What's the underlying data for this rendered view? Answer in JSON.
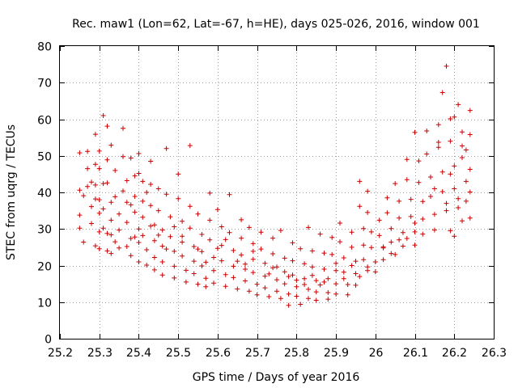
{
  "chart_data": {
    "type": "scatter",
    "title": "Rec. maw1 (Lon=62, Lat=-67, h=HE), days 025-026, 2016, window 001",
    "xlabel": "GPS time / Days of year 2016",
    "ylabel": "STEC from uqrg / TECUs",
    "xlim": [
      25.2,
      26.3
    ],
    "ylim": [
      0,
      80
    ],
    "xticks": [
      "25.2",
      "25.3",
      "25.4",
      "25.5",
      "25.6",
      "25.7",
      "25.8",
      "25.9",
      "26",
      "26.1",
      "26.2",
      "26.3"
    ],
    "yticks": [
      "0",
      "10",
      "20",
      "30",
      "40",
      "50",
      "60",
      "70",
      "80"
    ],
    "grid": true,
    "marker": "+",
    "color": "#cc0000",
    "series": [
      {
        "name": "STEC",
        "points": [
          [
            25.25,
            50.8
          ],
          [
            25.25,
            40.6
          ],
          [
            25.26,
            39.1
          ],
          [
            25.25,
            33.8
          ],
          [
            25.25,
            30.2
          ],
          [
            25.26,
            26.4
          ],
          [
            25.27,
            51.2
          ],
          [
            25.27,
            46.5
          ],
          [
            25.27,
            41.6
          ],
          [
            25.28,
            36.1
          ],
          [
            25.28,
            31.5
          ],
          [
            25.29,
            25.4
          ],
          [
            25.29,
            55.9
          ],
          [
            25.29,
            47.7
          ],
          [
            25.29,
            42.0
          ],
          [
            25.29,
            38.2
          ],
          [
            25.3,
            34.3
          ],
          [
            25.3,
            29.2
          ],
          [
            25.3,
            24.6
          ],
          [
            25.3,
            51.3
          ],
          [
            25.3,
            46.5
          ],
          [
            25.31,
            42.4
          ],
          [
            25.31,
            35.5
          ],
          [
            25.31,
            30.2
          ],
          [
            25.32,
            24.0
          ],
          [
            25.31,
            61.0
          ],
          [
            25.32,
            58.1
          ],
          [
            25.32,
            48.9
          ],
          [
            25.32,
            42.6
          ],
          [
            25.33,
            37.3
          ],
          [
            25.33,
            32.4
          ],
          [
            25.33,
            28.4
          ],
          [
            25.33,
            23.3
          ],
          [
            25.33,
            52.9
          ],
          [
            25.34,
            46.0
          ],
          [
            25.34,
            38.8
          ],
          [
            25.35,
            34.1
          ],
          [
            25.35,
            29.7
          ],
          [
            25.35,
            24.8
          ],
          [
            25.36,
            57.5
          ],
          [
            25.36,
            49.8
          ],
          [
            25.37,
            43.2
          ],
          [
            25.37,
            37.3
          ],
          [
            25.37,
            31.8
          ],
          [
            25.38,
            27.4
          ],
          [
            25.38,
            22.7
          ],
          [
            25.38,
            49.4
          ],
          [
            25.39,
            44.5
          ],
          [
            25.39,
            38.9
          ],
          [
            25.39,
            34.6
          ],
          [
            25.4,
            30.0
          ],
          [
            25.4,
            26.3
          ],
          [
            25.4,
            21.0
          ],
          [
            25.4,
            50.6
          ],
          [
            25.41,
            43.0
          ],
          [
            25.41,
            37.6
          ],
          [
            25.41,
            33.2
          ],
          [
            25.41,
            28.2
          ],
          [
            25.42,
            24.3
          ],
          [
            25.42,
            20.1
          ],
          [
            25.43,
            48.5
          ],
          [
            25.43,
            42.2
          ],
          [
            25.43,
            36.4
          ],
          [
            25.44,
            31.1
          ],
          [
            25.44,
            26.8
          ],
          [
            25.44,
            22.2
          ],
          [
            25.44,
            18.8
          ],
          [
            25.45,
            41.0
          ],
          [
            25.45,
            35.0
          ],
          [
            25.46,
            29.7
          ],
          [
            25.46,
            25.3
          ],
          [
            25.46,
            21.0
          ],
          [
            25.46,
            17.4
          ],
          [
            25.47,
            52.0
          ],
          [
            25.47,
            39.5
          ],
          [
            25.48,
            33.3
          ],
          [
            25.48,
            27.9
          ],
          [
            25.49,
            23.9
          ],
          [
            25.49,
            19.8
          ],
          [
            25.49,
            16.6
          ],
          [
            25.5,
            45.0
          ],
          [
            25.5,
            38.3
          ],
          [
            25.51,
            32.1
          ],
          [
            25.51,
            26.4
          ],
          [
            25.51,
            22.6
          ],
          [
            25.52,
            18.7
          ],
          [
            25.52,
            15.5
          ],
          [
            25.53,
            52.8
          ],
          [
            25.53,
            36.2
          ],
          [
            25.53,
            30.2
          ],
          [
            25.54,
            25.2
          ],
          [
            25.54,
            21.2
          ],
          [
            25.54,
            17.8
          ],
          [
            25.55,
            14.9
          ],
          [
            25.55,
            34.1
          ],
          [
            25.56,
            28.5
          ],
          [
            25.56,
            23.8
          ],
          [
            25.56,
            19.9
          ],
          [
            25.57,
            16.5
          ],
          [
            25.57,
            14.2
          ],
          [
            25.58,
            39.8
          ],
          [
            25.58,
            32.4
          ],
          [
            25.58,
            27.0
          ],
          [
            25.59,
            22.2
          ],
          [
            25.59,
            18.6
          ],
          [
            25.59,
            15.2
          ],
          [
            25.6,
            35.3
          ],
          [
            25.61,
            30.6
          ],
          [
            25.61,
            25.5
          ],
          [
            25.61,
            21.3
          ],
          [
            25.62,
            17.5
          ],
          [
            25.62,
            14.3
          ],
          [
            25.63,
            39.4
          ],
          [
            25.63,
            29.0
          ],
          [
            25.64,
            24.1
          ],
          [
            25.64,
            19.8
          ],
          [
            25.64,
            16.7
          ],
          [
            25.65,
            13.6
          ],
          [
            25.66,
            32.5
          ],
          [
            25.66,
            27.5
          ],
          [
            25.66,
            22.9
          ],
          [
            25.67,
            19.0
          ],
          [
            25.67,
            15.8
          ],
          [
            25.68,
            13.0
          ],
          [
            25.68,
            30.4
          ],
          [
            25.69,
            26.0
          ],
          [
            25.69,
            21.7
          ],
          [
            25.69,
            18.1
          ],
          [
            25.7,
            14.9
          ],
          [
            25.7,
            12.0
          ],
          [
            25.71,
            29.1
          ],
          [
            25.71,
            24.5
          ],
          [
            25.72,
            20.6
          ],
          [
            25.72,
            17.1
          ],
          [
            25.72,
            13.9
          ],
          [
            25.73,
            11.5
          ],
          [
            25.74,
            27.5
          ],
          [
            25.74,
            23.2
          ],
          [
            25.74,
            19.4
          ],
          [
            25.75,
            16.1
          ],
          [
            25.75,
            13.0
          ],
          [
            25.76,
            11.0
          ],
          [
            25.76,
            29.6
          ],
          [
            25.77,
            22.0
          ],
          [
            25.77,
            18.3
          ],
          [
            25.77,
            15.0
          ],
          [
            25.78,
            12.2
          ],
          [
            25.78,
            9.1
          ],
          [
            25.79,
            26.2
          ],
          [
            25.79,
            21.3
          ],
          [
            25.79,
            17.4
          ],
          [
            25.8,
            14.2
          ],
          [
            25.8,
            11.6
          ],
          [
            25.81,
            9.4
          ],
          [
            25.81,
            24.6
          ],
          [
            25.82,
            20.5
          ],
          [
            25.82,
            16.4
          ],
          [
            25.83,
            13.5
          ],
          [
            25.83,
            11.0
          ],
          [
            25.83,
            30.4
          ],
          [
            25.84,
            24.0
          ],
          [
            25.84,
            19.6
          ],
          [
            25.85,
            15.9
          ],
          [
            25.85,
            12.8
          ],
          [
            25.85,
            10.5
          ],
          [
            25.86,
            28.6
          ],
          [
            25.87,
            23.4
          ],
          [
            25.87,
            19.0
          ],
          [
            25.87,
            15.5
          ],
          [
            25.88,
            12.6
          ],
          [
            25.88,
            10.8
          ],
          [
            25.89,
            27.7
          ],
          [
            25.89,
            23.0
          ],
          [
            25.9,
            18.6
          ],
          [
            25.9,
            15.0
          ],
          [
            25.9,
            12.2
          ],
          [
            25.91,
            31.6
          ],
          [
            25.91,
            26.5
          ],
          [
            25.92,
            22.1
          ],
          [
            25.92,
            18.2
          ],
          [
            25.93,
            14.8
          ],
          [
            25.93,
            12.0
          ],
          [
            25.94,
            29.1
          ],
          [
            25.94,
            25.0
          ],
          [
            25.95,
            21.2
          ],
          [
            25.95,
            17.8
          ],
          [
            25.95,
            14.6
          ],
          [
            25.96,
            43.0
          ],
          [
            25.96,
            36.2
          ],
          [
            25.97,
            30.1
          ],
          [
            25.97,
            25.6
          ],
          [
            25.97,
            21.6
          ],
          [
            25.98,
            18.6
          ],
          [
            25.98,
            40.3
          ],
          [
            25.98,
            34.5
          ],
          [
            25.99,
            29.2
          ],
          [
            25.99,
            24.9
          ],
          [
            26.0,
            21.0
          ],
          [
            26.0,
            18.3
          ],
          [
            26.01,
            32.4
          ],
          [
            26.01,
            28.2
          ],
          [
            26.02,
            24.8
          ],
          [
            26.02,
            21.6
          ],
          [
            26.03,
            38.5
          ],
          [
            26.03,
            34.4
          ],
          [
            26.04,
            30.1
          ],
          [
            26.04,
            26.4
          ],
          [
            26.05,
            23.0
          ],
          [
            26.05,
            42.4
          ],
          [
            26.06,
            37.6
          ],
          [
            26.06,
            33.0
          ],
          [
            26.07,
            29.0
          ],
          [
            26.07,
            25.3
          ],
          [
            26.08,
            49.0
          ],
          [
            26.08,
            43.5
          ],
          [
            26.09,
            38.1
          ],
          [
            26.09,
            33.4
          ],
          [
            26.1,
            29.2
          ],
          [
            26.1,
            25.6
          ],
          [
            26.1,
            56.4
          ],
          [
            26.11,
            48.6
          ],
          [
            26.11,
            42.7
          ],
          [
            26.12,
            37.5
          ],
          [
            26.12,
            32.7
          ],
          [
            26.12,
            28.6
          ],
          [
            26.13,
            56.8
          ],
          [
            26.13,
            50.5
          ],
          [
            26.14,
            44.2
          ],
          [
            26.14,
            38.9
          ],
          [
            26.15,
            34.0
          ],
          [
            26.15,
            29.7
          ],
          [
            26.16,
            58.5
          ],
          [
            26.16,
            52.3
          ],
          [
            26.17,
            45.6
          ],
          [
            26.17,
            40.2
          ],
          [
            26.18,
            35.0
          ],
          [
            26.18,
            74.5
          ],
          [
            26.19,
            60.1
          ],
          [
            26.19,
            54.0
          ],
          [
            26.2,
            47.2
          ],
          [
            26.2,
            41.0
          ],
          [
            26.21,
            35.8
          ],
          [
            26.21,
            64.0
          ],
          [
            26.22,
            56.5
          ],
          [
            26.22,
            49.5
          ],
          [
            26.23,
            43.0
          ],
          [
            26.23,
            37.6
          ],
          [
            26.24,
            33.0
          ],
          [
            26.24,
            62.4
          ],
          [
            26.24,
            55.8
          ],
          [
            26.24,
            46.3
          ],
          [
            26.24,
            40.1
          ],
          [
            26.17,
            67.3
          ],
          [
            26.2,
            60.6
          ],
          [
            26.22,
            52.7
          ],
          [
            26.16,
            53.7
          ],
          [
            26.19,
            45.0
          ],
          [
            26.21,
            38.3
          ],
          [
            26.23,
            51.6
          ],
          [
            26.15,
            41.0
          ],
          [
            26.18,
            37.0
          ],
          [
            26.2,
            28.0
          ],
          [
            26.22,
            32.2
          ],
          [
            26.19,
            29.5
          ],
          [
            25.36,
            40.4
          ],
          [
            25.38,
            36.6
          ],
          [
            25.4,
            45.2
          ],
          [
            25.42,
            40.0
          ],
          [
            25.28,
            42.8
          ],
          [
            25.3,
            38.0
          ],
          [
            25.32,
            28.8
          ],
          [
            25.34,
            26.5
          ],
          [
            25.37,
            25.2
          ],
          [
            25.39,
            27.8
          ],
          [
            25.43,
            30.8
          ],
          [
            25.45,
            28.3
          ],
          [
            25.47,
            24.5
          ],
          [
            25.49,
            30.6
          ],
          [
            25.51,
            28.0
          ],
          [
            25.55,
            24.5
          ],
          [
            25.57,
            20.9
          ],
          [
            25.6,
            24.7
          ],
          [
            25.62,
            27.1
          ],
          [
            25.65,
            21.2
          ],
          [
            25.67,
            20.4
          ],
          [
            25.69,
            23.9
          ],
          [
            25.73,
            17.7
          ],
          [
            25.75,
            19.6
          ],
          [
            25.78,
            17.0
          ],
          [
            25.8,
            16.0
          ],
          [
            25.82,
            14.8
          ],
          [
            25.84,
            17.3
          ],
          [
            25.86,
            14.7
          ],
          [
            25.88,
            16.4
          ],
          [
            25.9,
            20.6
          ],
          [
            25.92,
            16.4
          ],
          [
            25.94,
            20.0
          ],
          [
            25.96,
            17.0
          ],
          [
            25.98,
            19.6
          ],
          [
            26.02,
            25.1
          ],
          [
            26.04,
            23.3
          ],
          [
            26.06,
            27.0
          ],
          [
            26.08,
            27.4
          ],
          [
            26.1,
            31.6
          ]
        ]
      }
    ]
  }
}
